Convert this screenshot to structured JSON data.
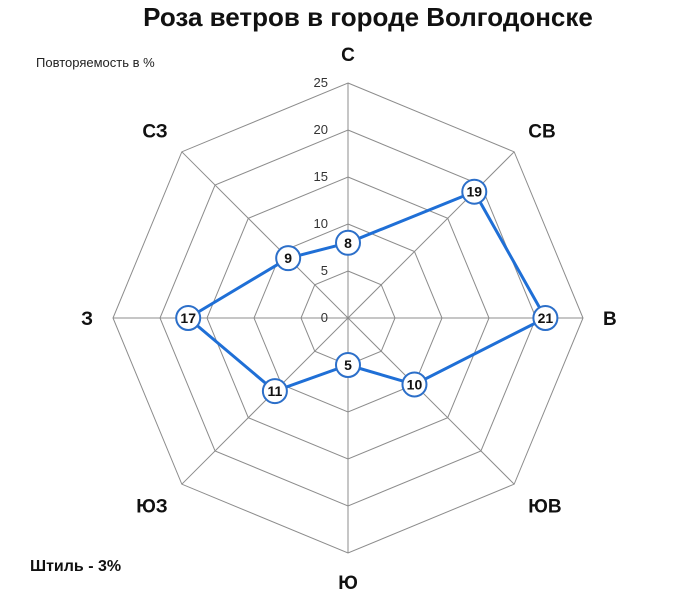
{
  "chart_data": {
    "type": "radar",
    "title": "Роза ветров в городе Волгодонске",
    "unit_label": "Повторяемость в %",
    "calm_note": "Штиль - 3%",
    "categories": [
      "С",
      "СВ",
      "В",
      "ЮВ",
      "Ю",
      "ЮЗ",
      "З",
      "СЗ"
    ],
    "values": [
      8,
      19,
      21,
      10,
      5,
      11,
      17,
      9
    ],
    "value_labels": [
      "8",
      "19",
      "21",
      "10",
      "5",
      "11",
      "17",
      "9"
    ],
    "rlim": [
      0,
      25
    ],
    "ticks": [
      "0",
      "5",
      "10",
      "15",
      "20",
      "25"
    ],
    "tick_values": [
      0,
      5,
      10,
      15,
      20,
      25
    ],
    "grid": true,
    "colors": {
      "series": "#1f6fd6",
      "grid": "#8c8c8c",
      "marker_border": "#2c6fc9",
      "marker_fill": "#ffffff"
    }
  }
}
